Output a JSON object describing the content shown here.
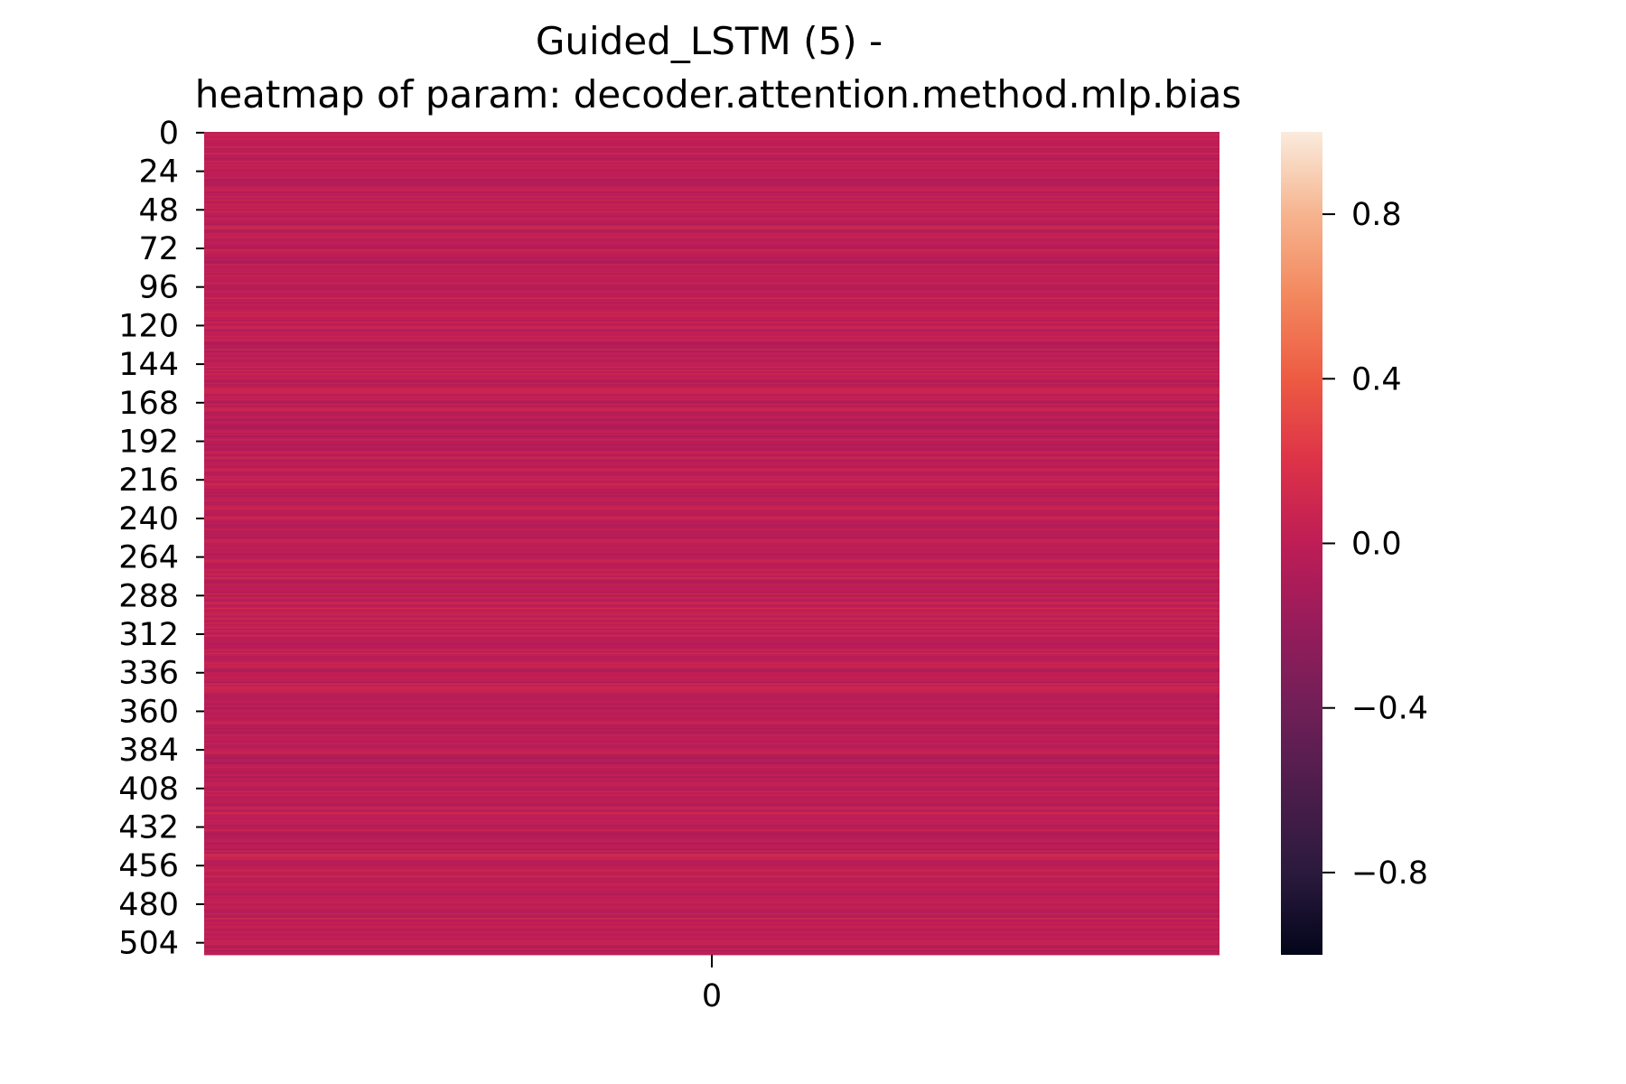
{
  "chart_data": {
    "type": "heatmap",
    "title_lines": [
      "Guided_LSTM (5) -",
      "heatmap of param: decoder.attention.method.mlp.bias"
    ],
    "rows": 512,
    "columns": 1,
    "y_tick_labels": [
      "0",
      "24",
      "48",
      "72",
      "96",
      "120",
      "144",
      "168",
      "192",
      "216",
      "240",
      "264",
      "288",
      "312",
      "336",
      "360",
      "384",
      "408",
      "432",
      "456",
      "480",
      "504"
    ],
    "x_tick_labels": [
      "0"
    ],
    "value_range": [
      -1.0,
      1.0
    ],
    "colorbar_ticks": [
      "0.8",
      "0.4",
      "0.0",
      "−0.4",
      "−0.8"
    ],
    "colorbar_tick_values": [
      0.8,
      0.4,
      0.0,
      -0.4,
      -0.8
    ],
    "colormap": [
      "#03051a",
      "#2b1a3d",
      "#4c1d4b",
      "#701f57",
      "#971c5b",
      "#be1d56",
      "#dd3248",
      "#ed5b43",
      "#f3875e",
      "#f6b48e",
      "#faebdd"
    ],
    "value_band": [
      -0.12,
      0.12
    ],
    "grid": false,
    "legend": "colorbar-right"
  }
}
